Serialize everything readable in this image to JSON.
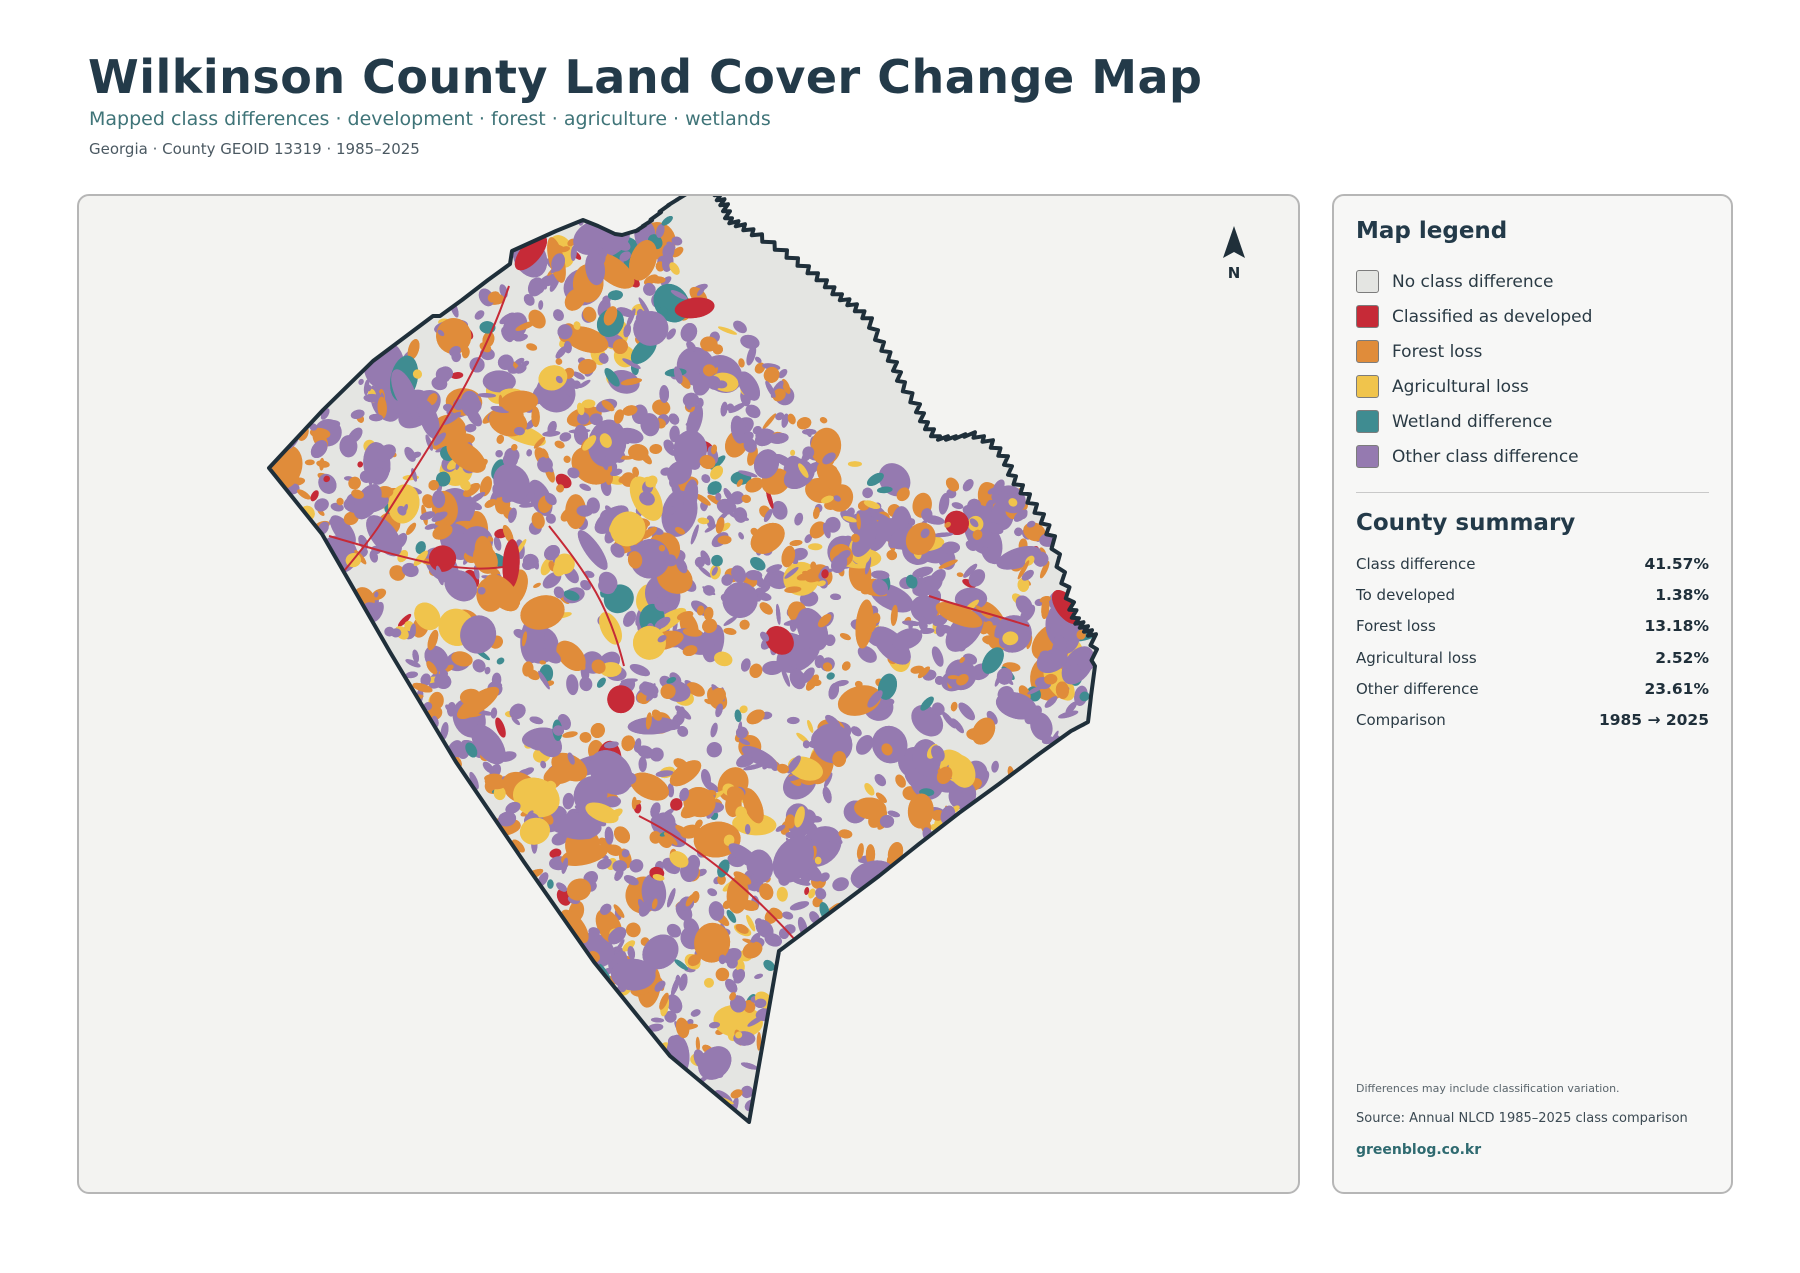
{
  "header": {
    "title": "Wilkinson County Land Cover Change Map",
    "subtitle": "Mapped class differences · development · forest · agriculture · wetlands",
    "meta": "Georgia · County GEOID 13319 · 1985–2025"
  },
  "map": {
    "north_label": "N",
    "colors": {
      "no_change": "#e4e5e2",
      "developed": "#c62a37",
      "forest_loss": "#e08c3a",
      "agricultural_loss": "#f0c44c",
      "wetland": "#3f8c91",
      "other": "#957ab0",
      "outline": "#1f2f3a"
    }
  },
  "legend": {
    "heading": "Map legend",
    "items": [
      {
        "label": "No class difference",
        "color": "#e4e5e2",
        "icon": "swatch"
      },
      {
        "label": "Classified as developed",
        "color": "#c62a37",
        "icon": "swatch"
      },
      {
        "label": "Forest loss",
        "color": "#e08c3a",
        "icon": "swatch"
      },
      {
        "label": "Agricultural loss",
        "color": "#f0c44c",
        "icon": "swatch"
      },
      {
        "label": "Wetland difference",
        "color": "#3f8c91",
        "icon": "swatch"
      },
      {
        "label": "Other class difference",
        "color": "#957ab0",
        "icon": "swatch"
      }
    ]
  },
  "summary": {
    "heading": "County summary",
    "rows": [
      {
        "label": "Class difference",
        "value": "41.57%"
      },
      {
        "label": "To developed",
        "value": "1.38%"
      },
      {
        "label": "Forest loss",
        "value": "13.18%"
      },
      {
        "label": "Agricultural loss",
        "value": "2.52%"
      },
      {
        "label": "Other difference",
        "value": "23.61%"
      },
      {
        "label": "Comparison",
        "value": "1985 → 2025"
      }
    ]
  },
  "footer": {
    "note": "Differences may include classification variation.",
    "source": "Source: Annual NLCD 1985–2025 class comparison",
    "site": "greenblog.co.kr"
  }
}
